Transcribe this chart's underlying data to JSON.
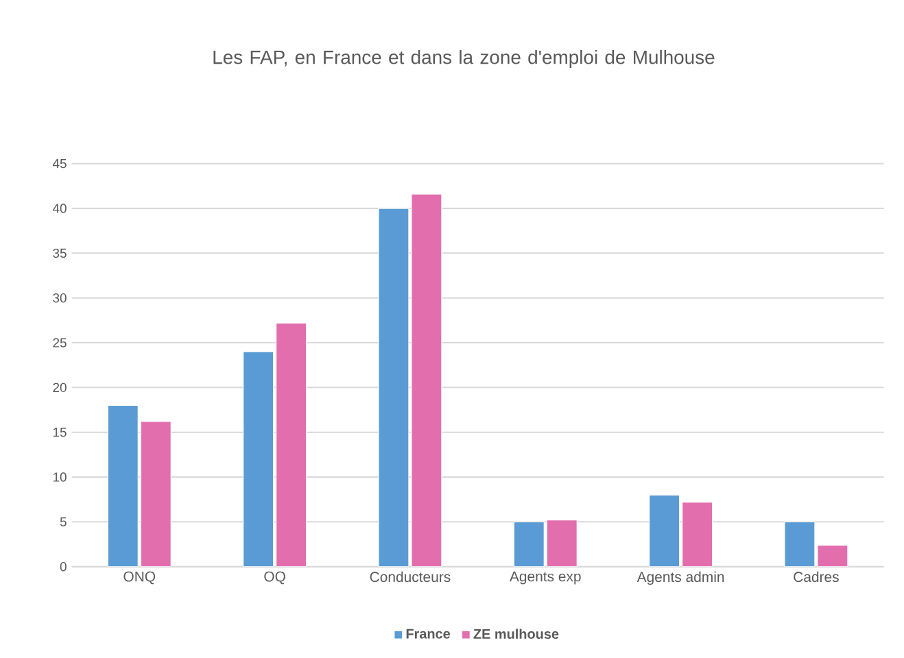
{
  "chart_data": {
    "type": "bar",
    "title": "Les FAP, en France et dans la zone d'emploi de Mulhouse",
    "categories": [
      "ONQ",
      "OQ",
      "Conducteurs",
      "Agents exp",
      "Agents admin",
      "Cadres"
    ],
    "series": [
      {
        "name": "France",
        "color": "#5b9bd5",
        "values": [
          18,
          24,
          40,
          5,
          8,
          5
        ]
      },
      {
        "name": "ZE mulhouse",
        "color": "#e36ead",
        "values": [
          16.2,
          27.2,
          41.6,
          5.2,
          7.2,
          2.4
        ]
      }
    ],
    "ylim": [
      0,
      45
    ],
    "yticks": [
      0,
      5,
      10,
      15,
      20,
      25,
      30,
      35,
      40,
      45
    ],
    "grid": "y",
    "legend": "bottom"
  }
}
